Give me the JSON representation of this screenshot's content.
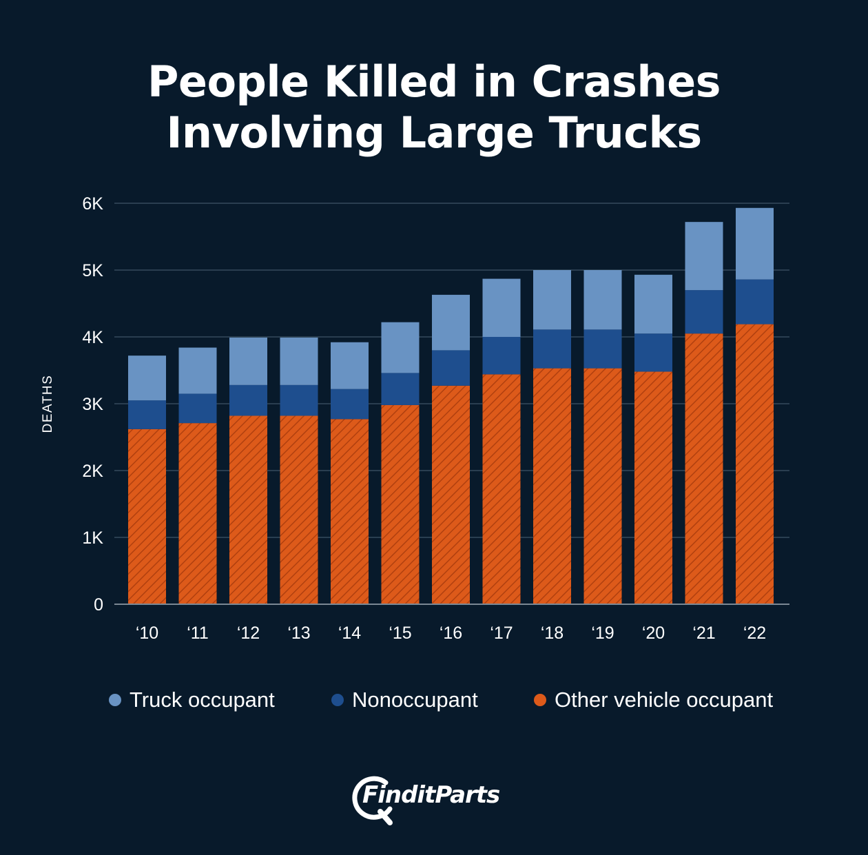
{
  "title": {
    "line1": "People Killed in Crashes",
    "line2": "Involving Large Trucks"
  },
  "colors": {
    "background": "#081a2b",
    "truck_occupant": "#6993c3",
    "nonoccupant": "#1e4e8e",
    "other_vehicle_occupant": "#dd5a1a",
    "grid": "#3f5466",
    "axis": "#7b8894"
  },
  "chart_data": {
    "type": "bar",
    "stacked": true,
    "categories": [
      "‘10",
      "‘11",
      "‘12",
      "‘13",
      "‘14",
      "‘15",
      "‘16",
      "‘17",
      "‘18",
      "‘19",
      "‘20",
      "‘21",
      "‘22"
    ],
    "series": [
      {
        "name": "Other vehicle occupant",
        "values": [
          2620,
          2710,
          2820,
          2820,
          2770,
          2980,
          3270,
          3440,
          3530,
          3530,
          3480,
          4050,
          4190
        ]
      },
      {
        "name": "Nonoccupant",
        "values": [
          430,
          440,
          460,
          460,
          450,
          480,
          530,
          560,
          580,
          580,
          570,
          650,
          670
        ]
      },
      {
        "name": "Truck occupant",
        "values": [
          670,
          690,
          710,
          710,
          700,
          760,
          830,
          870,
          890,
          890,
          880,
          1020,
          1070
        ]
      }
    ],
    "ylabel": "DEATHS",
    "yticks": [
      "0",
      "1K",
      "2K",
      "3K",
      "4K",
      "5K",
      "6K"
    ],
    "ytick_values": [
      0,
      1000,
      2000,
      3000,
      4000,
      5000,
      6000
    ],
    "ylim": [
      0,
      6000
    ],
    "grid": true,
    "legend_position": "bottom"
  },
  "legend": [
    {
      "label": "Truck occupant",
      "color": "#6993c3"
    },
    {
      "label": "Nonoccupant",
      "color": "#1e4e8e"
    },
    {
      "label": "Other vehicle occupant",
      "color": "#dd5a1a"
    }
  ],
  "logo": {
    "text": "FinditParts",
    "icon": "magnifier-logo-icon"
  }
}
